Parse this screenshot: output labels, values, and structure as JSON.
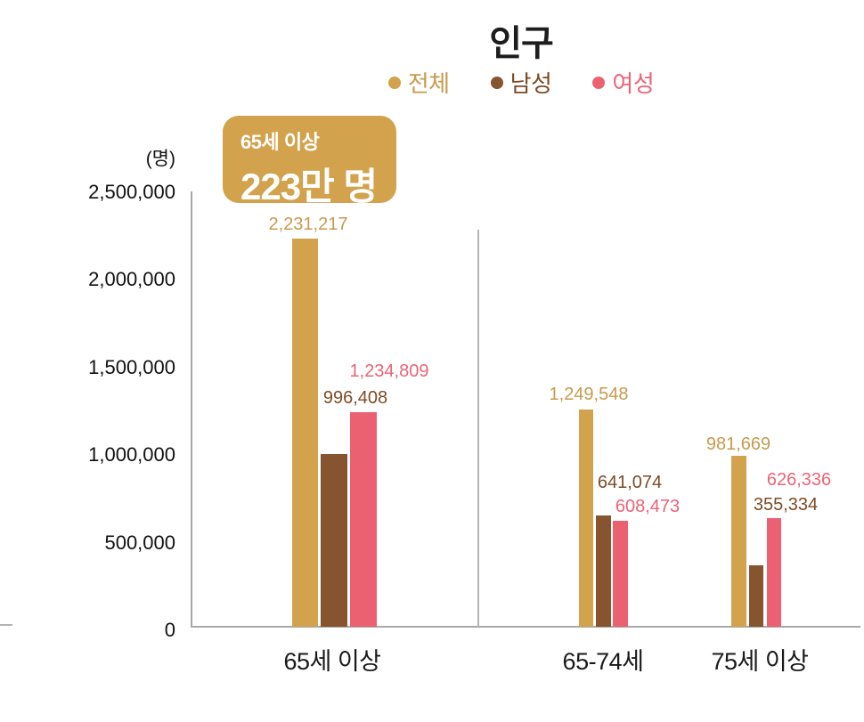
{
  "chart": {
    "title": "인구",
    "y_unit": "(명)"
  },
  "badge": {
    "line1": "65세 이상",
    "line2": "223만 명"
  },
  "colors": {
    "total": "#D2A24C",
    "male": "#86542E",
    "female": "#EB6172",
    "total_label": "#C99A4C",
    "male_label": "#7D4B24",
    "female_label": "#EC6376",
    "badge_bg": "#D2A24C",
    "badge_text": "#FFFFFF",
    "axis": "#A8A8A8",
    "divider": "#B4B4B4",
    "title_text": "#1D1D1F"
  },
  "legend": [
    {
      "label": "전체",
      "key": "total",
      "text_key": "total_label"
    },
    {
      "label": "남성",
      "key": "male",
      "text_key": "male_label"
    },
    {
      "label": "여성",
      "key": "female",
      "text_key": "female_label"
    }
  ],
  "chart_data": {
    "type": "bar",
    "title": "인구",
    "y_unit": "(명)",
    "ylim": [
      0,
      2500000
    ],
    "grid": false,
    "legend_position": "top",
    "yticks": [
      0,
      500000,
      1000000,
      1500000,
      2000000,
      2500000
    ],
    "ytick_labels": [
      "0",
      "500,000",
      "1,000,000",
      "1,500,000",
      "2,000,000",
      "2,500,000"
    ],
    "categories": [
      "65세 이상",
      "65-74세",
      "75세 이상"
    ],
    "series": [
      {
        "name": "전체",
        "color_key": "total",
        "values": [
          2231217,
          1249548,
          981669
        ],
        "labels": [
          "2,231,217",
          "1,249,548",
          "981,669"
        ]
      },
      {
        "name": "남성",
        "color_key": "male",
        "values": [
          996408,
          641074,
          355334
        ],
        "labels": [
          "996,408",
          "641,074",
          "355,334"
        ]
      },
      {
        "name": "여성",
        "color_key": "female",
        "values": [
          1234809,
          608473,
          626336
        ],
        "labels": [
          "1,234,809",
          "608,473",
          "626,336"
        ]
      }
    ],
    "annotation": "65세 이상 223만 명"
  }
}
